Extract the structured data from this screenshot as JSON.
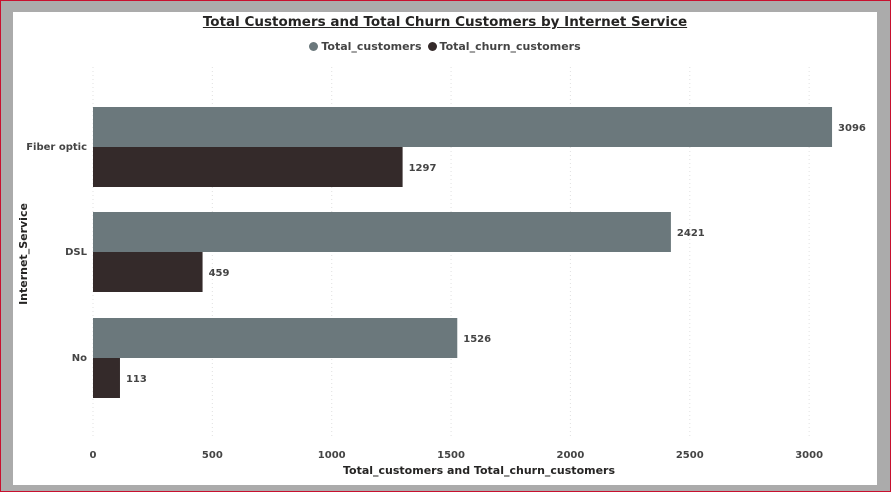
{
  "chart_data": {
    "type": "bar",
    "orientation": "horizontal",
    "title": "Total Customers and Total Churn Customers by Internet Service",
    "xlabel": "Total_customers and Total_churn_customers",
    "ylabel": "Internet_Service",
    "categories": [
      "Fiber optic",
      "DSL",
      "No"
    ],
    "series": [
      {
        "name": "Total_customers",
        "values": [
          3096,
          2421,
          1526
        ],
        "color": "#6b787c"
      },
      {
        "name": "Total_churn_customers",
        "values": [
          1297,
          459,
          113
        ],
        "color": "#342a2a"
      }
    ],
    "xlim": [
      0,
      3100
    ],
    "xticks": [
      "0",
      "500",
      "1000",
      "1500",
      "2000",
      "2500",
      "3000"
    ],
    "legend_position": "top-center",
    "grid": "vertical dotted"
  }
}
